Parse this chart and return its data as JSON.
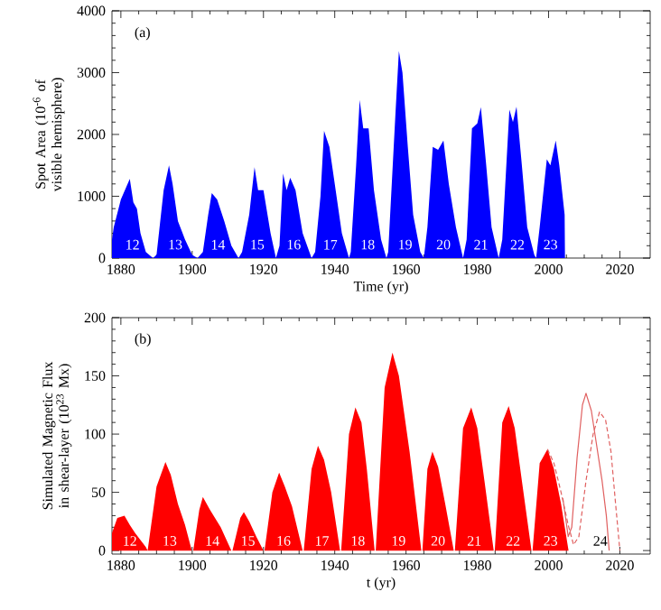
{
  "chart_data": [
    {
      "type": "area",
      "title": "(a)",
      "xlabel": "Time (yr)",
      "ylabel": "Spot Area (10$^{-6}$ of visible hemisphere)",
      "xlim": [
        1877.5,
        2028.5
      ],
      "ylim": [
        0,
        4000
      ],
      "xticks": [
        1880,
        1900,
        1920,
        1940,
        1960,
        1980,
        2000,
        2020
      ],
      "yticks": [
        0,
        1000,
        2000,
        3000,
        4000
      ],
      "series": [
        {
          "color": "#0000ff",
          "x": [
            1877.5,
            1878,
            1880,
            1882.5,
            1883.5,
            1884.5,
            1885.5,
            1887,
            1889,
            1890,
            1892,
            1893.5,
            1894.5,
            1896,
            1898,
            1900,
            1901.5,
            1903,
            1904.5,
            1905.5,
            1907,
            1909,
            1911,
            1913,
            1914,
            1916,
            1917.5,
            1918.5,
            1920,
            1922,
            1923.5,
            1924.5,
            1925.5,
            1926.5,
            1927.5,
            1929,
            1931,
            1933.5,
            1934.5,
            1936,
            1937,
            1938.5,
            1940,
            1942,
            1944,
            1944.5,
            1946,
            1947,
            1948,
            1949.5,
            1951,
            1953,
            1954.5,
            1955,
            1957,
            1958,
            1959,
            1960.5,
            1962,
            1964,
            1965,
            1966,
            1967.5,
            1969,
            1970.5,
            1972,
            1974,
            1976,
            1977,
            1978.5,
            1980,
            1981,
            1982.5,
            1984,
            1986,
            1987,
            1989,
            1990,
            1991,
            1992.5,
            1994,
            1996,
            1996.5,
            1997.5,
            1999.5,
            2000.5,
            2002,
            2003,
            2004.5,
            2004.6
          ],
          "values": [
            300,
            500,
            950,
            1280,
            900,
            800,
            400,
            100,
            0,
            50,
            1100,
            1500,
            1200,
            600,
            300,
            50,
            0,
            100,
            700,
            1050,
            950,
            600,
            200,
            0,
            100,
            700,
            1470,
            1100,
            1100,
            400,
            0,
            200,
            1370,
            1100,
            1300,
            1100,
            400,
            0,
            100,
            1000,
            2060,
            1800,
            1200,
            400,
            0,
            100,
            1500,
            2560,
            2100,
            2100,
            1100,
            300,
            0,
            100,
            2300,
            3350,
            3000,
            1800,
            700,
            100,
            0,
            500,
            1800,
            1750,
            1900,
            1200,
            500,
            0,
            300,
            2100,
            2180,
            2440,
            1500,
            500,
            0,
            300,
            2400,
            2200,
            2450,
            1500,
            500,
            50,
            0,
            500,
            1600,
            1500,
            1900,
            1500,
            700,
            0
          ]
        }
      ],
      "annotations": [
        "12",
        "13",
        "14",
        "15",
        "16",
        "17",
        "18",
        "19",
        "20",
        "21",
        "22",
        "23"
      ]
    },
    {
      "type": "area",
      "title": "(b)",
      "xlabel": "t (yr)",
      "ylabel": "Simulated Magnetic Flux in shear-layer (10$^{23}$ Mx)",
      "xlim": [
        1877.5,
        2028.5
      ],
      "ylim": [
        -3,
        200
      ],
      "xticks": [
        1880,
        1900,
        1920,
        1940,
        1960,
        1980,
        2000,
        2020
      ],
      "yticks": [
        0,
        50,
        100,
        150,
        200
      ],
      "series": [
        {
          "color": "#ff0000",
          "x": [
            1877.5,
            1879,
            1881,
            1882.5,
            1884,
            1887,
            1887.5,
            1890,
            1892.5,
            1894,
            1896,
            1898,
            1899.9,
            1900.3,
            1902,
            1903,
            1905,
            1908,
            1911,
            1911.3,
            1913.5,
            1914.5,
            1916,
            1918,
            1920,
            1920.3,
            1922.5,
            1924.4,
            1926,
            1928,
            1931,
            1931.3,
            1933.5,
            1935.3,
            1937,
            1939,
            1941.5,
            1941.8,
            1944,
            1945.8,
            1947.5,
            1949,
            1951.2,
            1951.5,
            1954,
            1956.2,
            1958,
            1961,
            1964.3,
            1964.6,
            1966,
            1967.4,
            1969,
            1971,
            1973.4,
            1973.7,
            1976,
            1978.3,
            1980,
            1982,
            1984.6,
            1984.9,
            1987,
            1988.8,
            1990.5,
            1992.5,
            1995.2,
            1995.5,
            1997.5,
            1999.7,
            2001.5,
            2003.5,
            2005.6
          ],
          "values": [
            15,
            28,
            30,
            22,
            15,
            3,
            0,
            55,
            76,
            65,
            40,
            22,
            0,
            0,
            35,
            46,
            35,
            20,
            0,
            0,
            28,
            33,
            25,
            12,
            0,
            0,
            50,
            67,
            55,
            38,
            0,
            0,
            70,
            90,
            78,
            50,
            0,
            0,
            100,
            123,
            110,
            70,
            0,
            0,
            140,
            170,
            150,
            85,
            0,
            0,
            70,
            85,
            72,
            40,
            0,
            0,
            105,
            123,
            105,
            60,
            0,
            0,
            110,
            124,
            105,
            60,
            0,
            0,
            75,
            87,
            70,
            40,
            0
          ]
        },
        {
          "type": "line",
          "color": "#e06060",
          "line_style": "dashed",
          "x": [
            1999.7,
            2001.5,
            2003.5,
            2005.5,
            2007,
            2008.5,
            2010.5,
            2012.5,
            2014.3,
            2016,
            2017.5,
            2018.8,
            2020
          ],
          "values": [
            87,
            75,
            50,
            22,
            5,
            12,
            60,
            100,
            119,
            112,
            85,
            40,
            0
          ]
        },
        {
          "type": "line",
          "color": "#e06060",
          "line_style": "solid",
          "x": [
            2004,
            2005.5,
            2006.5,
            2008,
            2009.5,
            2010.5,
            2012,
            2013.5,
            2015,
            2016.2,
            2017
          ],
          "values": [
            45,
            12,
            20,
            80,
            125,
            135,
            120,
            90,
            60,
            30,
            0
          ]
        }
      ],
      "annotations": [
        "12",
        "13",
        "14",
        "15",
        "16",
        "17",
        "18",
        "19",
        "20",
        "21",
        "22",
        "23",
        "24"
      ]
    }
  ]
}
